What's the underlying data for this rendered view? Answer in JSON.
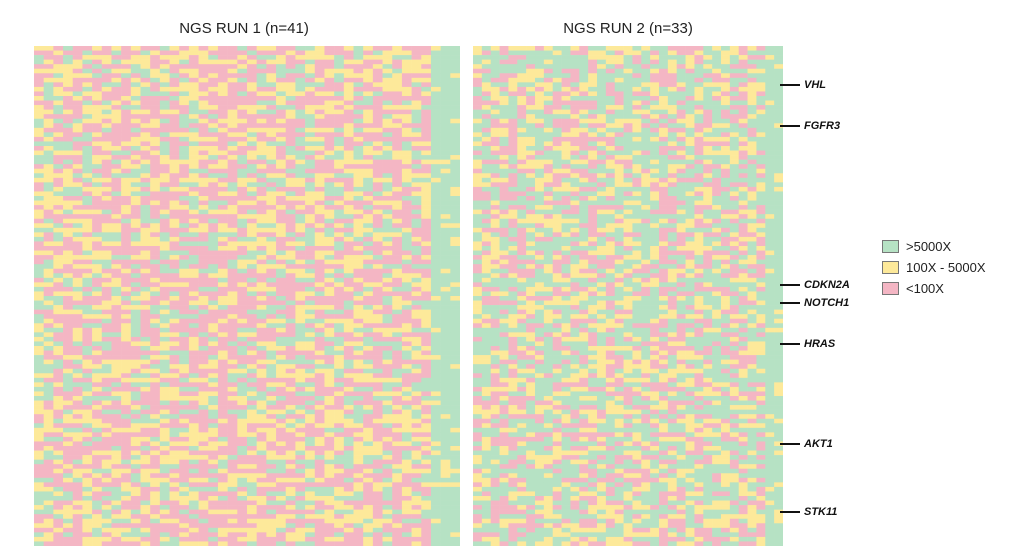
{
  "chart_data": {
    "type": "heatmap",
    "panels": [
      {
        "title": "NGS RUN 1 (n=41)",
        "samples": 41,
        "rows": 110,
        "palette_weights": [
          0.22,
          0.33,
          0.45
        ]
      },
      {
        "title": "NGS RUN 2 (n=33)",
        "samples": 33,
        "rows": 110,
        "palette_weights": [
          0.42,
          0.28,
          0.3
        ]
      }
    ],
    "gene_markers": [
      {
        "gene": "VHL",
        "row": 8
      },
      {
        "gene": "FGFR3",
        "row": 17
      },
      {
        "gene": "CDKN2A",
        "row": 52
      },
      {
        "gene": "NOTCH1",
        "row": 56
      },
      {
        "gene": "HRAS",
        "row": 65
      },
      {
        "gene": "AKT1",
        "row": 87
      },
      {
        "gene": "STK11",
        "row": 102
      }
    ],
    "legend": {
      "position": "right",
      "items": [
        {
          "label": ">5000X",
          "color": "#b6e2c4"
        },
        {
          "label": "100X - 5000X",
          "color": "#fde99a"
        },
        {
          "label": "<100X",
          "color": "#f4b6c4"
        }
      ]
    }
  }
}
